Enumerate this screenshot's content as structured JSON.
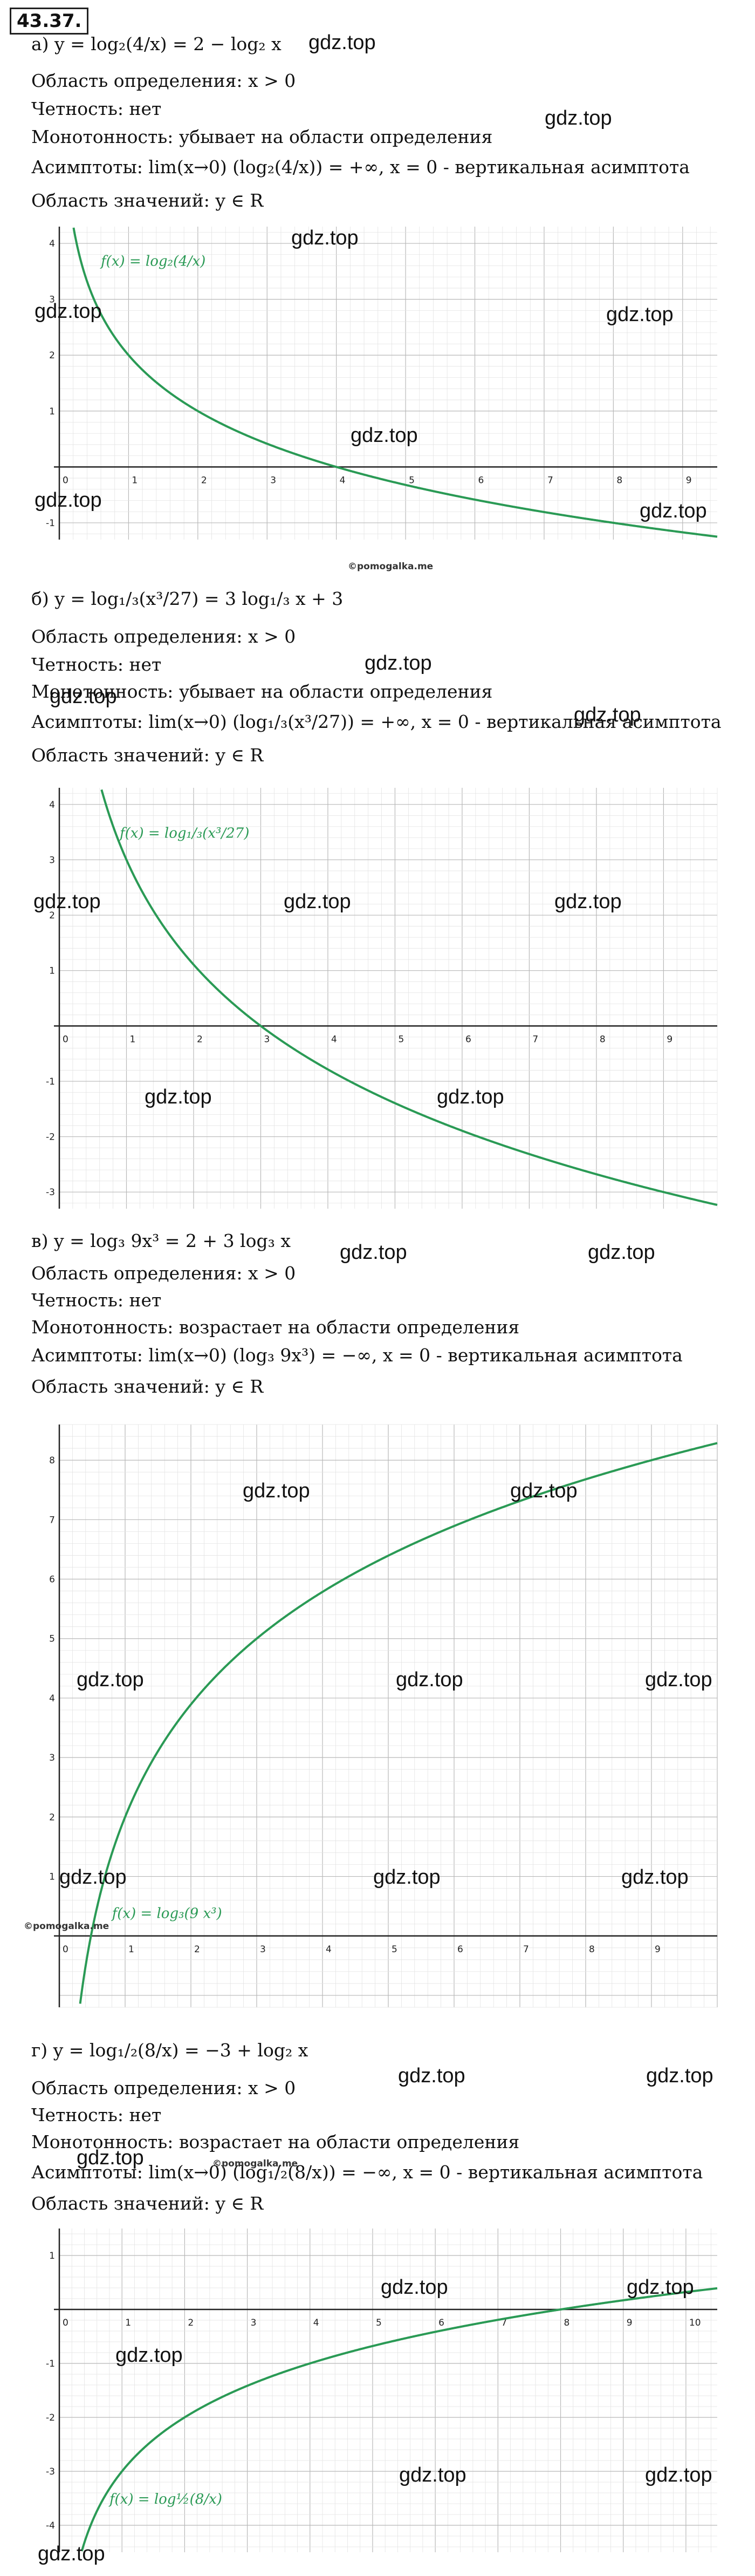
{
  "task_number": "43.37.",
  "watermark": "gdz.top",
  "credit": "©pomogalka.me",
  "sections": [
    {
      "formula": "а)  y = log₂(4/x) = 2 − log₂ x",
      "domain": "Область определения: x > 0",
      "parity": "Четность: нет",
      "monotonic": "Монотонность: убывает на области определения",
      "asymptote": "Асимптоты: lim(x→0) (log₂(4/x)) = +∞, x = 0 - вертикальная асимптота",
      "range": "Область значений: y ∈ R",
      "curve_label": "f(x) = log₂(4/x)"
    },
    {
      "formula": "б)  y = log₁/₃(x³/27) = 3 log₁/₃ x + 3",
      "domain": "Область определения: x > 0",
      "parity": "Четность: нет",
      "monotonic": "Монотонность: убывает на области определения",
      "asymptote": "Асимптоты: lim(x→0) (log₁/₃(x³/27)) = +∞, x = 0 - вертикальная асимптота",
      "range": "Область значений: y ∈ R",
      "curve_label": "f(x) = log₁/₃(x³/27)"
    },
    {
      "formula": "в)  y = log₃ 9x³ = 2 + 3 log₃ x",
      "domain": "Область определения: x > 0",
      "parity": "Четность: нет",
      "monotonic": "Монотонность: возрастает на области определения",
      "asymptote": "Асимптоты: lim(x→0) (log₃ 9x³) = −∞, x = 0 - вертикальная асимптота",
      "range": "Область значений: y ∈ R",
      "curve_label": "f(x) = log₃(9 x³)"
    },
    {
      "formula": "г)  y = log₁/₂(8/x) = −3 + log₂ x",
      "domain": "Область определения: x > 0",
      "parity": "Четность: нет",
      "monotonic": "Монотонность: возрастает на области определения",
      "asymptote": "Асимптоты: lim(x→0) (log₁/₂(8/x)) = −∞, x = 0 - вертикальная асимптота",
      "range": "Область значений: y ∈ R",
      "curve_label": "f(x) = log½(8/x)"
    }
  ],
  "chart_data": [
    {
      "type": "line",
      "function": "log2(4/x)",
      "xlim": [
        0,
        9.5
      ],
      "ylim": [
        -1.3,
        4.3
      ],
      "xticks": [
        0,
        1,
        2,
        3,
        4,
        5,
        6,
        7,
        8,
        9
      ],
      "yticks": [
        -1,
        1,
        2,
        3,
        4
      ],
      "grid": true
    },
    {
      "type": "line",
      "function": "3 - log3(x^3)",
      "xlim": [
        0,
        9.8
      ],
      "ylim": [
        -3.3,
        4.3
      ],
      "xticks": [
        0,
        1,
        2,
        3,
        4,
        5,
        6,
        7,
        8,
        9
      ],
      "yticks": [
        -3,
        -2,
        -1,
        1,
        2,
        3,
        4
      ],
      "grid": true
    },
    {
      "type": "line",
      "function": "2 + 3*log3(x)",
      "xlim": [
        0,
        10
      ],
      "ylim": [
        -1.2,
        8.6
      ],
      "xticks": [
        0,
        1,
        2,
        3,
        4,
        5,
        6,
        7,
        8,
        9
      ],
      "yticks": [
        1,
        2,
        3,
        4,
        5,
        6,
        7,
        8
      ],
      "grid": true
    },
    {
      "type": "line",
      "function": "log2(x) - 3",
      "xlim": [
        0,
        10.5
      ],
      "ylim": [
        -4.5,
        1.5
      ],
      "xticks": [
        0,
        1,
        2,
        3,
        4,
        5,
        6,
        7,
        8,
        9,
        10
      ],
      "yticks": [
        -4,
        -3,
        -2,
        -1,
        1
      ],
      "grid": true
    }
  ]
}
